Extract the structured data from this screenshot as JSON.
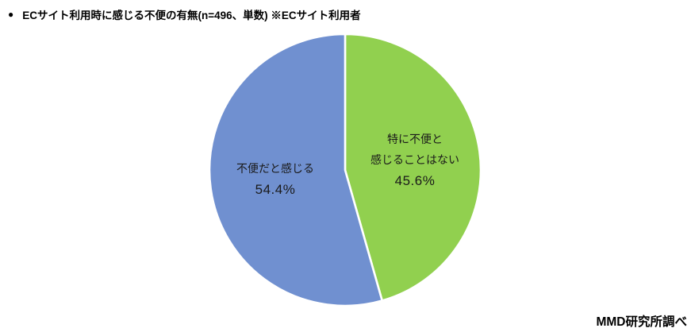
{
  "page": {
    "background": "#ffffff"
  },
  "header": {
    "bullet": "●",
    "title": "ECサイト利用時に感じる不便の有無(n=496、単数) ※ECサイト利用者"
  },
  "footer": {
    "source": "MMD研究所調べ"
  },
  "chart_data": {
    "type": "pie",
    "title": "ECサイト利用時に感じる不便の有無",
    "sample_note": "n=496、単数",
    "audience_note": "ECサイト利用者",
    "start_angle_deg": 0,
    "direction": "clockwise",
    "legend": "none",
    "separator_color": "#ffffff",
    "label_color": "#1a1a1a",
    "slices": [
      {
        "label": "特に不便と感じることはない",
        "label_lines": [
          "特に不便と",
          "感じることはない"
        ],
        "value": 45.6,
        "pct_text": "45.6%",
        "color": "#91D04F"
      },
      {
        "label": "不便だと感じる",
        "label_lines": [
          "不便だと感じる"
        ],
        "value": 54.4,
        "pct_text": "54.4%",
        "color": "#7090D0"
      }
    ]
  }
}
